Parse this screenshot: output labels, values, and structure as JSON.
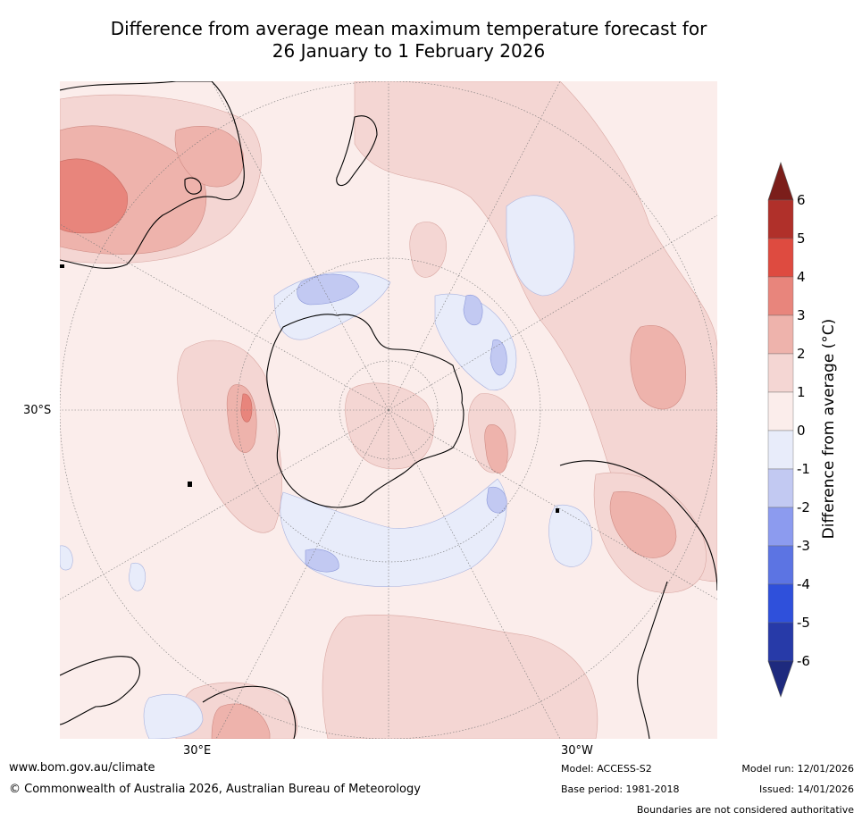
{
  "title": {
    "line1": "Difference from average mean maximum temperature forecast for",
    "line2": "26 January to 1 February 2026"
  },
  "axis_labels": {
    "lat_30s": "30°S",
    "lon_30e": "30°E",
    "lon_30w": "30°W"
  },
  "colorbar": {
    "title": "Difference from average (°C)",
    "ticks": [
      "6",
      "5",
      "4",
      "3",
      "2",
      "1",
      "0",
      "-1",
      "-2",
      "-3",
      "-4",
      "-5",
      "-6"
    ],
    "colors": [
      "#7b1e1a",
      "#b0302a",
      "#de4b40",
      "#e8857c",
      "#eeb3ac",
      "#f4d6d3",
      "#fbedeb",
      "#e8ecfa",
      "#c2c9f2",
      "#8c9bef",
      "#5c74e3",
      "#2f50db",
      "#273aa8",
      "#1e2a7e"
    ]
  },
  "footer": {
    "website": "www.bom.gov.au/climate",
    "copyright": "© Commonwealth of Australia 2026, Australian Bureau of Meteorology",
    "model": "Model: ACCESS-S2",
    "base_period": "Base period: 1981-2018",
    "model_run": "Model run: 12/01/2026",
    "issued": "Issued: 14/01/2026",
    "disclaimer": "Boundaries are not considered authoritative"
  }
}
